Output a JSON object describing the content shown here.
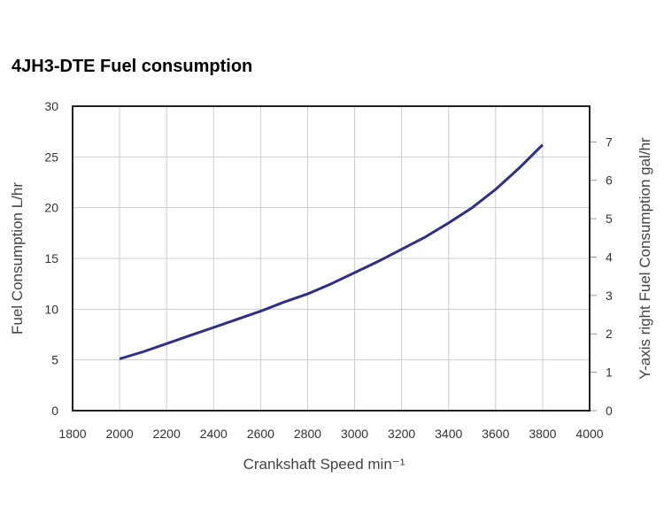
{
  "chart_data": {
    "type": "line",
    "title": "4JH3-DTE Fuel consumption",
    "xlabel": "Crankshaft Speed min⁻¹",
    "ylabel": "Fuel Consumption L/hr",
    "y2label": "Y-axis right  Fuel Consumption gal/hr",
    "xlim": [
      1800,
      4000
    ],
    "ylim": [
      0,
      30
    ],
    "y2lim": [
      0,
      7.93
    ],
    "xticks": [
      1800,
      2000,
      2200,
      2400,
      2600,
      2800,
      3000,
      3200,
      3400,
      3600,
      3800,
      4000
    ],
    "yticks": [
      0,
      5,
      10,
      15,
      20,
      25,
      30
    ],
    "y2ticks": [
      0,
      1,
      2,
      3,
      4,
      5,
      6,
      7
    ],
    "grid": true,
    "color": "#2e2e8c",
    "series": [
      {
        "x": [
          2000,
          2100,
          2200,
          2300,
          2400,
          2500,
          2600,
          2700,
          2800,
          2900,
          3000,
          3100,
          3200,
          3300,
          3400,
          3500,
          3600,
          3700,
          3800
        ],
        "y": [
          5.1,
          5.8,
          6.6,
          7.4,
          8.2,
          9.0,
          9.8,
          10.7,
          11.5,
          12.5,
          13.6,
          14.7,
          15.9,
          17.1,
          18.5,
          20.0,
          21.8,
          23.9,
          26.2
        ]
      }
    ]
  }
}
